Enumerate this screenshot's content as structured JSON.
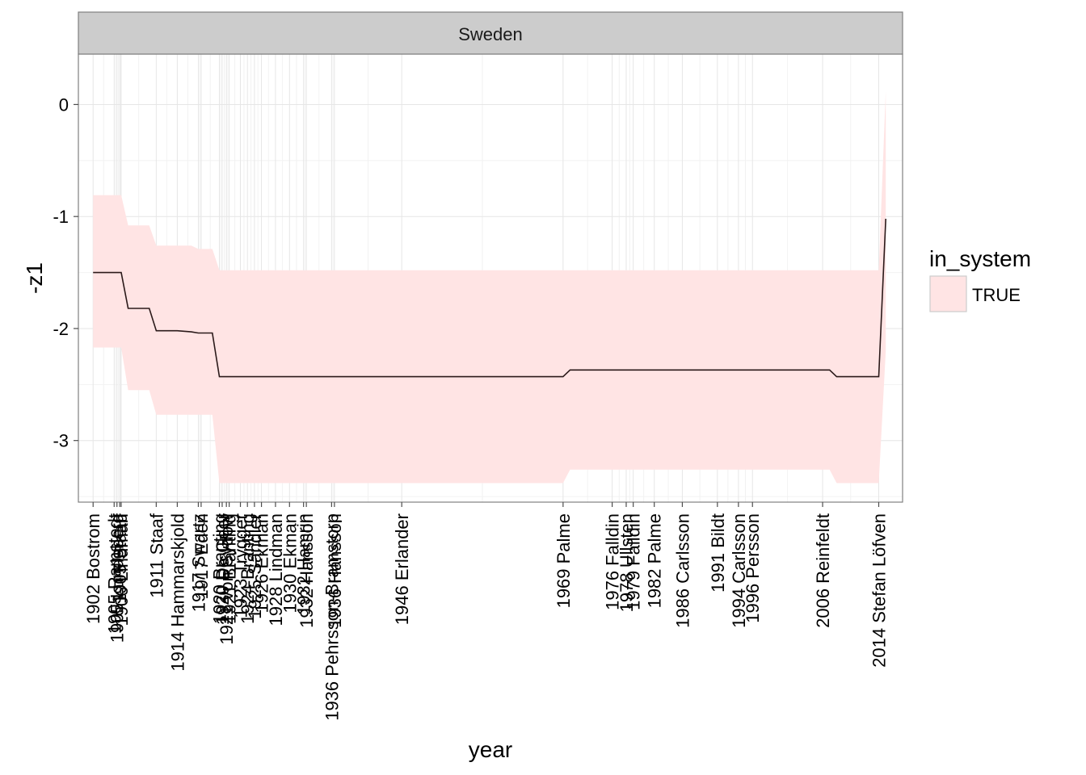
{
  "chart_data": {
    "type": "line",
    "panel": "Sweden",
    "xlabel": "year",
    "ylabel": "-z1",
    "ylim": [
      -3.55,
      0.45
    ],
    "xlim": [
      1899.9,
      2017.4
    ],
    "y_ticks": [
      0,
      -1,
      -2,
      -3
    ],
    "y_tick_labels": [
      "0",
      "-1",
      "-2",
      "-3"
    ],
    "x_ticks": [
      {
        "x": 1902,
        "label": "1902 Bostrom"
      },
      {
        "x": 1905,
        "label": "1905 Ramstedt"
      },
      {
        "x": 1905.4,
        "label": "1905 Lundeberg"
      },
      {
        "x": 1905.8,
        "label": "1905 Staaff"
      },
      {
        "x": 1906,
        "label": "1906 Lindman"
      },
      {
        "x": 1911,
        "label": "1911 Staaf"
      },
      {
        "x": 1914,
        "label": "1914 Hammarskjold"
      },
      {
        "x": 1917,
        "label": "1917 Swartz"
      },
      {
        "x": 1917.4,
        "label": "1917 Eden"
      },
      {
        "x": 1920,
        "label": "1920 Branting"
      },
      {
        "x": 1920.4,
        "label": "1920 De Geer"
      },
      {
        "x": 1921,
        "label": "1921 von Sydow"
      },
      {
        "x": 1921.4,
        "label": "1921 Branting"
      },
      {
        "x": 1923,
        "label": "1923 Trygger"
      },
      {
        "x": 1924,
        "label": "1924 Branting"
      },
      {
        "x": 1925,
        "label": "1925 Sandler"
      },
      {
        "x": 1926,
        "label": "1926 Ekman"
      },
      {
        "x": 1928,
        "label": "1928 Lindman"
      },
      {
        "x": 1930,
        "label": "1930 Ekman"
      },
      {
        "x": 1932,
        "label": "1932 Hamrin"
      },
      {
        "x": 1932.4,
        "label": "1932 Hansson"
      },
      {
        "x": 1936,
        "label": "1936 Pehrsson-Bramstorp"
      },
      {
        "x": 1936.4,
        "label": "1936 Hansson"
      },
      {
        "x": 1946,
        "label": "1946 Erlander"
      },
      {
        "x": 1969,
        "label": "1969 Palme"
      },
      {
        "x": 1976,
        "label": "1976 Falldin"
      },
      {
        "x": 1978,
        "label": "1978 Ullsten"
      },
      {
        "x": 1979,
        "label": "1979 Falldin"
      },
      {
        "x": 1982,
        "label": "1982 Palme"
      },
      {
        "x": 1986,
        "label": "1986 Carlsson"
      },
      {
        "x": 1991,
        "label": "1991 Bildt"
      },
      {
        "x": 1994,
        "label": "1994 Carlsson"
      },
      {
        "x": 1996,
        "label": "1996 Persson"
      },
      {
        "x": 2006,
        "label": "2006 Reinfeldt"
      },
      {
        "x": 2014,
        "label": "2014 Stefan Löfven"
      }
    ],
    "series": [
      {
        "name": "TRUE",
        "x": [
          1902,
          1906,
          1907,
          1910,
          1911,
          1914,
          1916,
          1917,
          1919,
          1920,
          1969,
          1970,
          2007,
          2008,
          2014,
          2015
        ],
        "y": [
          -1.5,
          -1.5,
          -1.82,
          -1.82,
          -2.02,
          -2.02,
          -2.03,
          -2.04,
          -2.04,
          -2.43,
          -2.43,
          -2.37,
          -2.37,
          -2.43,
          -2.43,
          -1.02
        ],
        "upper": [
          -0.81,
          -0.81,
          -1.08,
          -1.08,
          -1.26,
          -1.26,
          -1.26,
          -1.29,
          -1.29,
          -1.48,
          -1.48,
          -1.48,
          -1.48,
          -1.48,
          -1.48,
          0.12
        ],
        "lower": [
          -2.17,
          -2.17,
          -2.55,
          -2.55,
          -2.77,
          -2.77,
          -2.77,
          -2.77,
          -2.77,
          -3.38,
          -3.38,
          -3.26,
          -3.26,
          -3.38,
          -3.38,
          -2.2
        ]
      }
    ],
    "grid": true,
    "legend": {
      "title": "in_system",
      "entries": [
        "TRUE"
      ],
      "position": "right"
    },
    "colors": {
      "ribbon": "#ffe4e4",
      "line": "#2b1a1a",
      "panel_border": "#808080",
      "strip_bg": "#cccccc",
      "grid_major": "#e6e6e6",
      "grid_minor": "#f2f2f2"
    }
  }
}
